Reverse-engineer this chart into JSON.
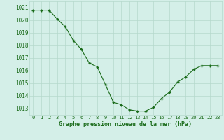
{
  "x": [
    0,
    1,
    2,
    3,
    4,
    5,
    6,
    7,
    8,
    9,
    10,
    11,
    12,
    13,
    14,
    15,
    16,
    17,
    18,
    19,
    20,
    21,
    22,
    23
  ],
  "y": [
    1020.8,
    1020.8,
    1020.8,
    1020.1,
    1019.5,
    1018.4,
    1017.7,
    1016.6,
    1016.3,
    1014.9,
    1013.5,
    1013.3,
    1012.9,
    1012.8,
    1012.8,
    1013.1,
    1013.8,
    1014.3,
    1015.1,
    1015.5,
    1016.1,
    1016.4,
    1016.4,
    1016.4
  ],
  "line_color": "#1a6b1a",
  "marker": "+",
  "bg_color": "#d4efe8",
  "grid_color": "#b5d9cc",
  "xlabel": "Graphe pression niveau de la mer (hPa)",
  "xlabel_color": "#1a6b1a",
  "tick_color": "#1a6b1a",
  "ylim": [
    1012.5,
    1021.5
  ],
  "yticks": [
    1013,
    1014,
    1015,
    1016,
    1017,
    1018,
    1019,
    1020,
    1021
  ],
  "xticks": [
    0,
    1,
    2,
    3,
    4,
    5,
    6,
    7,
    8,
    9,
    10,
    11,
    12,
    13,
    14,
    15,
    16,
    17,
    18,
    19,
    20,
    21,
    22,
    23
  ]
}
